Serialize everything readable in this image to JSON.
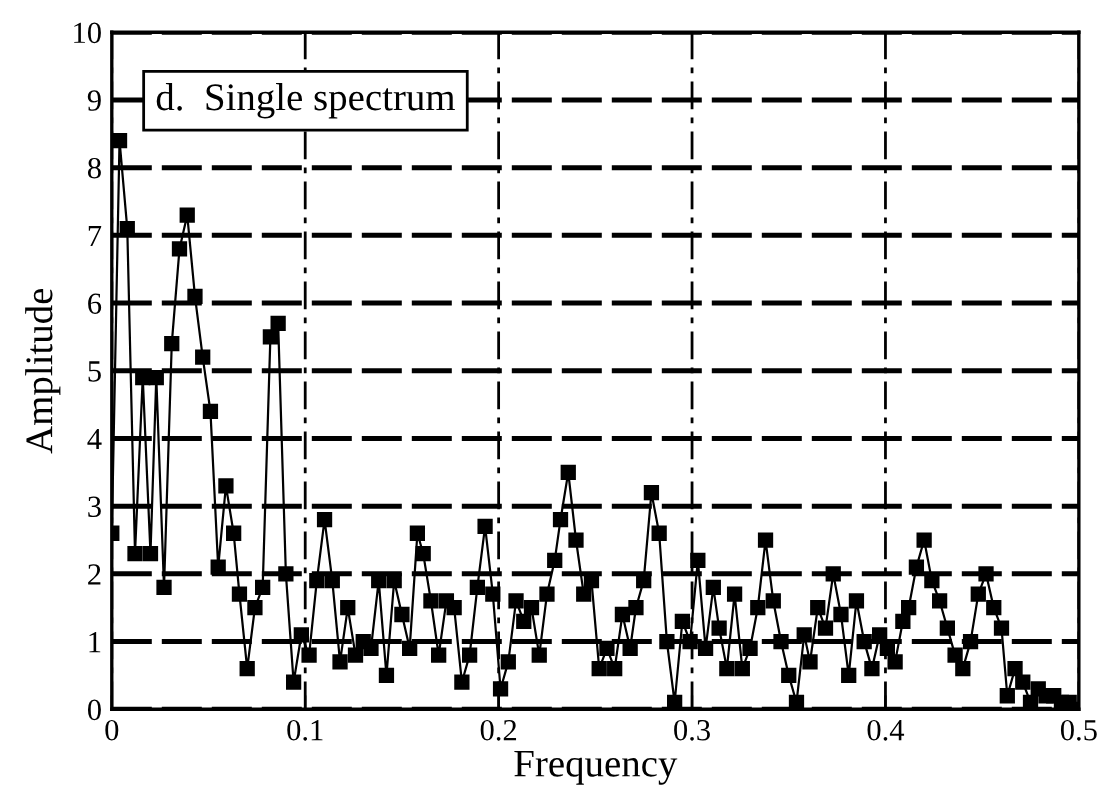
{
  "chart_data": {
    "type": "line",
    "title": "d.  Single spectrum",
    "xlabel": "Frequency",
    "ylabel": "Amplitude",
    "xlim": [
      0,
      0.5
    ],
    "ylim": [
      0,
      10
    ],
    "xticks": [
      0,
      0.1,
      0.2,
      0.3,
      0.4,
      0.5
    ],
    "yticks": [
      0,
      1,
      2,
      3,
      4,
      5,
      6,
      7,
      8,
      9,
      10
    ],
    "grid": true,
    "marker": "square",
    "line_style": "solid",
    "series": [
      {
        "color": "#000000",
        "x": [
          0,
          0.004,
          0.008,
          0.012,
          0.016,
          0.02,
          0.023,
          0.027,
          0.031,
          0.035,
          0.039,
          0.043,
          0.047,
          0.051,
          0.055,
          0.059,
          0.063,
          0.066,
          0.07,
          0.074,
          0.078,
          0.082,
          0.086,
          0.09,
          0.094,
          0.098,
          0.102,
          0.106,
          0.11,
          0.114,
          0.118,
          0.122,
          0.126,
          0.13,
          0.134,
          0.138,
          0.142,
          0.146,
          0.15,
          0.154,
          0.158,
          0.161,
          0.165,
          0.169,
          0.173,
          0.177,
          0.181,
          0.185,
          0.189,
          0.193,
          0.197,
          0.201,
          0.205,
          0.209,
          0.213,
          0.217,
          0.221,
          0.225,
          0.229,
          0.232,
          0.236,
          0.24,
          0.244,
          0.248,
          0.252,
          0.256,
          0.26,
          0.264,
          0.268,
          0.271,
          0.275,
          0.279,
          0.283,
          0.287,
          0.291,
          0.295,
          0.299,
          0.303,
          0.307,
          0.311,
          0.314,
          0.318,
          0.322,
          0.326,
          0.33,
          0.334,
          0.338,
          0.342,
          0.346,
          0.35,
          0.354,
          0.358,
          0.361,
          0.365,
          0.369,
          0.373,
          0.377,
          0.381,
          0.385,
          0.389,
          0.393,
          0.397,
          0.401,
          0.405,
          0.409,
          0.412,
          0.416,
          0.42,
          0.424,
          0.428,
          0.432,
          0.436,
          0.44,
          0.444,
          0.448,
          0.452,
          0.456,
          0.46,
          0.463,
          0.467,
          0.471,
          0.475,
          0.479,
          0.483,
          0.487,
          0.491,
          0.495,
          0.5
        ],
        "values": [
          2.6,
          8.4,
          7.1,
          2.3,
          4.9,
          2.3,
          4.9,
          1.8,
          5.4,
          6.8,
          7.3,
          6.1,
          5.2,
          4.4,
          2.1,
          3.3,
          2.6,
          1.7,
          0.6,
          1.5,
          1.8,
          5.5,
          5.7,
          2.0,
          0.4,
          1.1,
          0.8,
          1.9,
          2.8,
          1.9,
          0.7,
          1.5,
          0.8,
          1.0,
          0.9,
          1.9,
          0.5,
          1.9,
          1.4,
          0.9,
          2.6,
          2.3,
          1.6,
          0.8,
          1.6,
          1.5,
          0.4,
          0.8,
          1.8,
          2.7,
          1.7,
          0.3,
          0.7,
          1.6,
          1.3,
          1.5,
          0.8,
          1.7,
          2.2,
          2.8,
          3.5,
          2.5,
          1.7,
          1.9,
          0.6,
          0.9,
          0.6,
          1.4,
          0.9,
          1.5,
          1.9,
          3.2,
          2.6,
          1.0,
          0.1,
          1.3,
          1.0,
          2.2,
          0.9,
          1.8,
          1.2,
          0.6,
          1.7,
          0.6,
          0.9,
          1.5,
          2.5,
          1.6,
          1.0,
          0.5,
          0.1,
          1.1,
          0.7,
          1.5,
          1.2,
          2.0,
          1.4,
          0.5,
          1.6,
          1.0,
          0.6,
          1.1,
          0.9,
          0.7,
          1.3,
          1.5,
          2.1,
          2.5,
          1.9,
          1.6,
          1.2,
          0.8,
          0.6,
          1.0,
          1.7,
          2.0,
          1.5,
          1.2,
          0.2,
          0.6,
          0.4,
          0.1,
          0.3,
          0.2,
          0.2,
          0.1,
          0.1,
          0.0
        ]
      }
    ]
  }
}
